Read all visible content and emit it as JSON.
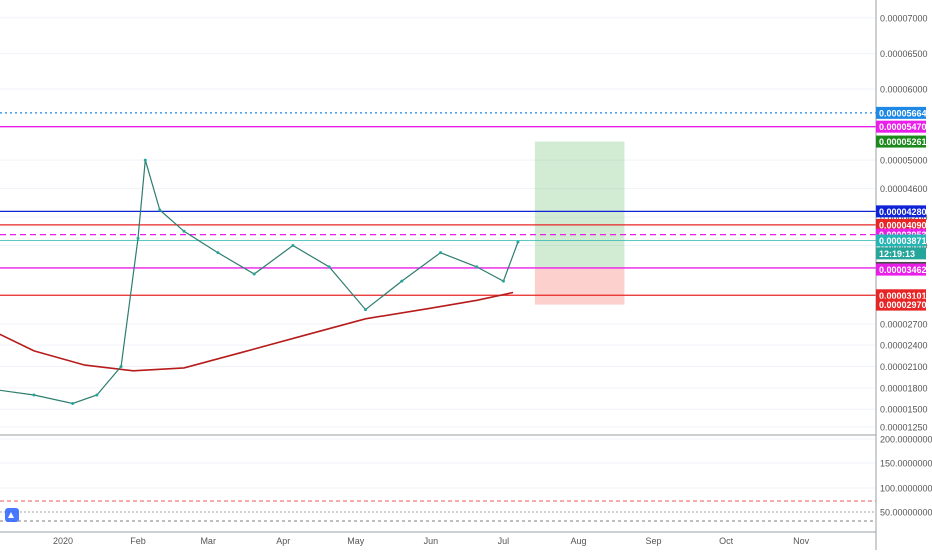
{
  "chart_data": {
    "type": "candlestick",
    "main_pane": {
      "price_axis_ticks": [
        "0.00007000",
        "0.00006500",
        "0.00006000",
        "0.00005000",
        "0.00004600",
        "0.00004200",
        "0.00003800",
        "0.00002700",
        "0.00002400",
        "0.00002100",
        "0.00001800",
        "0.00001500",
        "0.00001250"
      ],
      "y_min": 1.18e-05,
      "y_max": 7.25e-05,
      "price_labels": [
        {
          "text": "0.00005664",
          "value": 5.664e-05,
          "color": "#1e88e5"
        },
        {
          "text": "0.00005470",
          "value": 5.47e-05,
          "color": "#e91ee9"
        },
        {
          "text": "0.00005261",
          "value": 5.261e-05,
          "color": "#1b8a1b"
        },
        {
          "text": "0.00004280",
          "value": 4.28e-05,
          "color": "#1022d6"
        },
        {
          "text": "0.00004090",
          "value": 4.09e-05,
          "color": "#e82525"
        },
        {
          "text": "0.00003953",
          "value": 3.953e-05,
          "color": "#e91ee9"
        },
        {
          "text": "0.00003871",
          "value": 3.871e-05,
          "color": "#26b5b5"
        },
        {
          "text": "12:19:13",
          "value": 3.69e-05,
          "color": "#26a69a"
        },
        {
          "text": "0.00003485",
          "value": 3.485e-05,
          "color": "#4a4a4a"
        },
        {
          "text": "0.00003462",
          "value": 3.462e-05,
          "color": "#e91ee9"
        },
        {
          "text": "0.00003101",
          "value": 3.101e-05,
          "color": "#e82525"
        },
        {
          "text": "0.00002970",
          "value": 2.97e-05,
          "color": "#e82525"
        }
      ],
      "horizontal_lines": [
        {
          "value": 5.664e-05,
          "color": "#1e88e5",
          "style": "dotted"
        },
        {
          "value": 5.47e-05,
          "color": "#e91ee9",
          "style": "solid"
        },
        {
          "value": 4.28e-05,
          "color": "#1022d6",
          "style": "solid"
        },
        {
          "value": 4.09e-05,
          "color": "#e82525",
          "style": "solid"
        },
        {
          "value": 3.953e-05,
          "color": "#e91ee9",
          "style": "dashed"
        },
        {
          "value": 3.871e-05,
          "color": "#26b5b5",
          "style": "thin"
        },
        {
          "value": 3.485e-05,
          "color": "#e91ee9",
          "style": "solid"
        },
        {
          "value": 3.101e-05,
          "color": "#e82525",
          "style": "solid"
        }
      ],
      "position_tool": {
        "entry": 3.485e-05,
        "target": 5.261e-05,
        "stop": 2.97e-05,
        "from": "Jul 14",
        "to": "Aug 20"
      },
      "moving_average_200": [
        {
          "x": "Dec 3",
          "y": 2.6e-05
        },
        {
          "x": "Dec 20",
          "y": 2.32e-05
        },
        {
          "x": "Jan 10",
          "y": 2.12e-05
        },
        {
          "x": "Jan 30",
          "y": 2.04e-05
        },
        {
          "x": "Feb 20",
          "y": 2.08e-05
        },
        {
          "x": "Mar 15",
          "y": 2.3e-05
        },
        {
          "x": "Apr 10",
          "y": 2.54e-05
        },
        {
          "x": "May 5",
          "y": 2.77e-05
        },
        {
          "x": "Jun 1",
          "y": 2.92e-05
        },
        {
          "x": "Jun 20",
          "y": 3.03e-05
        },
        {
          "x": "Jul 5",
          "y": 3.14e-05
        }
      ],
      "price_line": [
        {
          "x": "Dec 3",
          "y": 1.78e-05
        },
        {
          "x": "Dec 20",
          "y": 1.7e-05
        },
        {
          "x": "Jan 5",
          "y": 1.58e-05
        },
        {
          "x": "Jan 15",
          "y": 1.7e-05
        },
        {
          "x": "Jan 25",
          "y": 2.1e-05
        },
        {
          "x": "Feb 1",
          "y": 3.9e-05
        },
        {
          "x": "Feb 4",
          "y": 5e-05
        },
        {
          "x": "Feb 10",
          "y": 4.3e-05
        },
        {
          "x": "Feb 20",
          "y": 4e-05
        },
        {
          "x": "Mar 5",
          "y": 3.7e-05
        },
        {
          "x": "Mar 20",
          "y": 3.4e-05
        },
        {
          "x": "Apr 5",
          "y": 3.8e-05
        },
        {
          "x": "Apr 20",
          "y": 3.5e-05
        },
        {
          "x": "May 5",
          "y": 2.9e-05
        },
        {
          "x": "May 20",
          "y": 3.3e-05
        },
        {
          "x": "Jun 5",
          "y": 3.7e-05
        },
        {
          "x": "Jun 20",
          "y": 3.5e-05
        },
        {
          "x": "Jul 1",
          "y": 3.3e-05
        },
        {
          "x": "Jul 7",
          "y": 3.85e-05
        }
      ]
    },
    "cci_pane": {
      "ticks": [
        "200.00000000",
        "150.00000000",
        "100.00000000"
      ]
    },
    "rsi_pane": {
      "ticks": [
        "50.00000000"
      ]
    },
    "time_axis": [
      "2020",
      "Feb",
      "Mar",
      "Apr",
      "May",
      "Jun",
      "Jul",
      "Aug",
      "Sep",
      "Oct",
      "Nov"
    ]
  }
}
